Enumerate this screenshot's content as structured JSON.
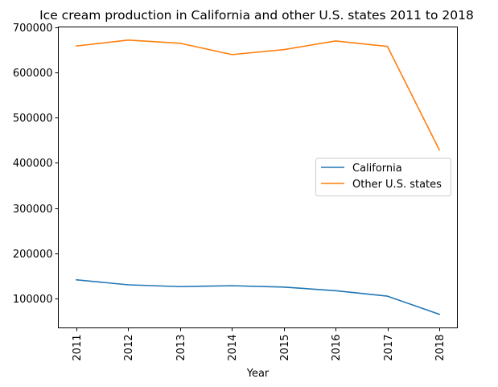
{
  "chart_data": {
    "type": "line",
    "title": "Ice cream production in California and other U.S. states 2011 to 2018",
    "xlabel": "Year",
    "ylabel": "",
    "categories": [
      "2011",
      "2012",
      "2013",
      "2014",
      "2015",
      "2016",
      "2017",
      "2018"
    ],
    "yticks": [
      100000,
      200000,
      300000,
      400000,
      500000,
      600000,
      700000
    ],
    "ylim": [
      36000,
      700000
    ],
    "grid": false,
    "legend_position": "center-right",
    "series": [
      {
        "name": "California",
        "color": "#1f77b4",
        "values": [
          142000,
          131000,
          127000,
          129000,
          126000,
          118000,
          106000,
          66000
        ]
      },
      {
        "name": "Other U.S. states",
        "color": "#ff7f0e",
        "values": [
          658000,
          671000,
          664000,
          639000,
          650000,
          669000,
          657000,
          429000
        ]
      }
    ]
  }
}
